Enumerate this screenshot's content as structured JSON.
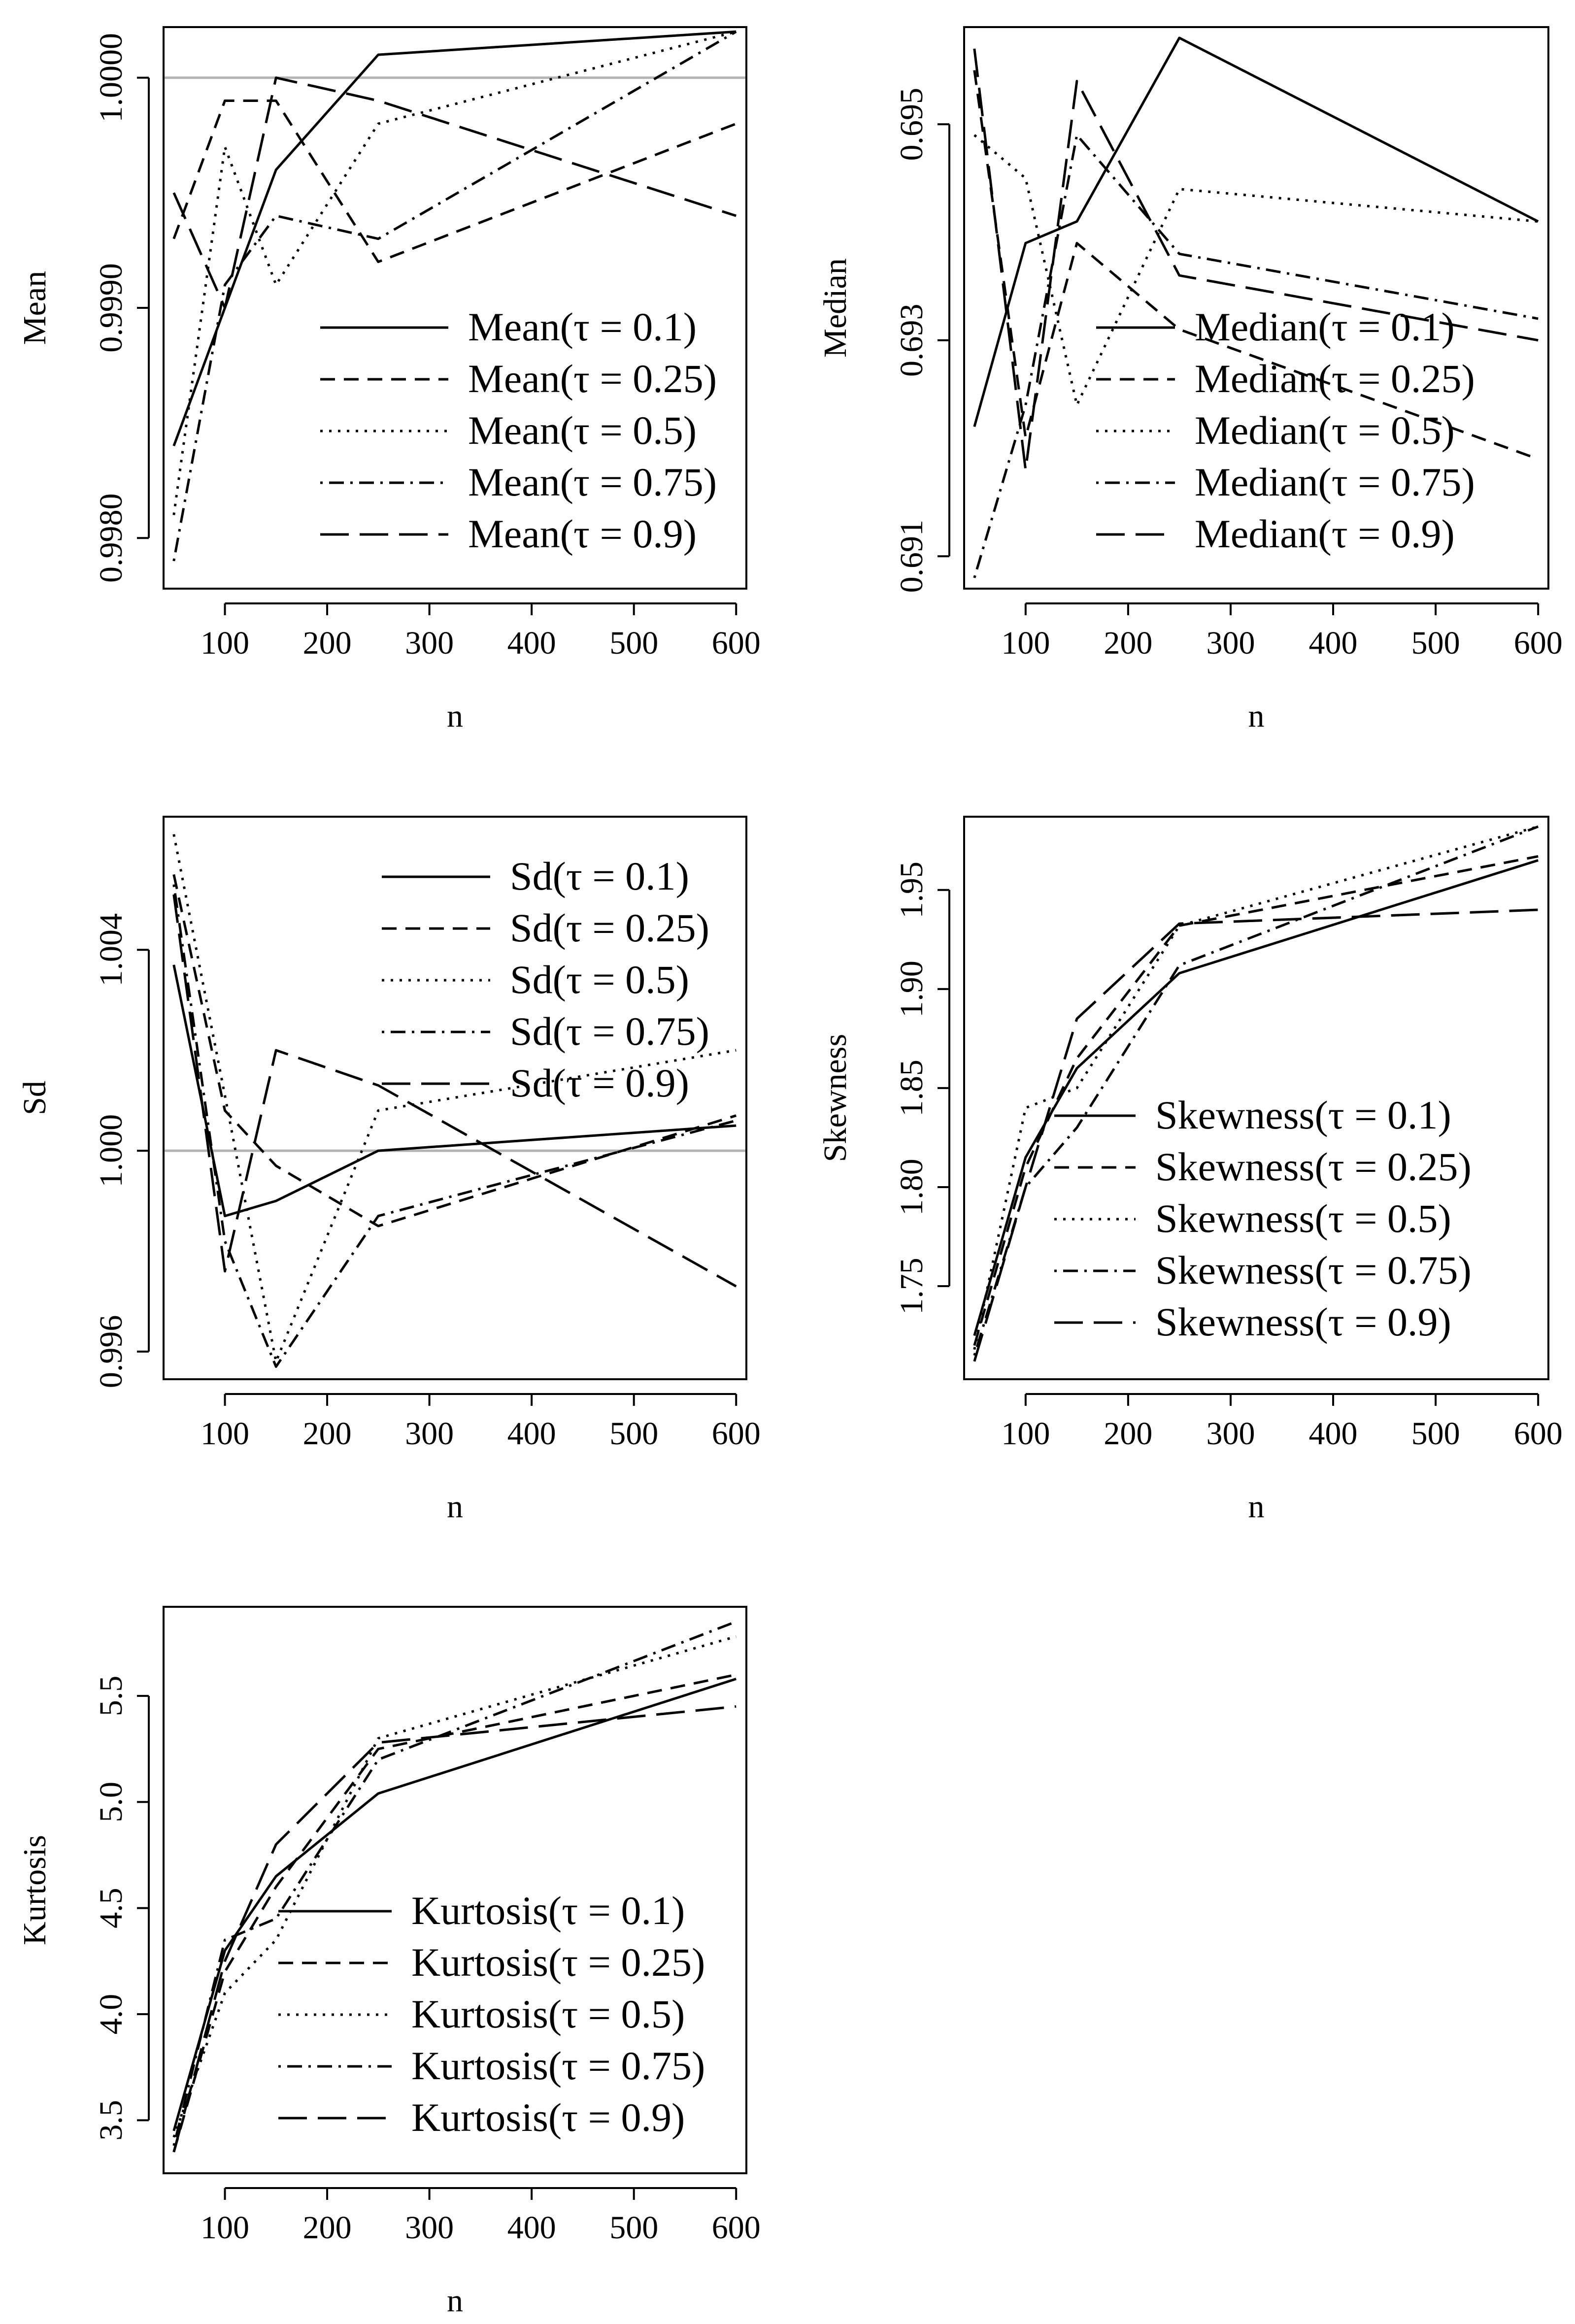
{
  "chart_data": [
    {
      "type": "line",
      "id": "mean",
      "xlabel": "n",
      "ylabel": "Mean",
      "x": [
        50,
        100,
        150,
        250,
        600
      ],
      "xticks": [
        100,
        200,
        300,
        400,
        500,
        600
      ],
      "xlim": [
        40,
        610
      ],
      "yticks": [
        0.998,
        0.999,
        1.0
      ],
      "ytick_labels": [
        "0.9980",
        "0.9990",
        "1.0000"
      ],
      "ylim": [
        0.99778,
        1.00022
      ],
      "reference_line": 1.0,
      "legend_position": "bottom-right",
      "series": [
        {
          "name": "Mean(τ = 0.1)",
          "label_func": "Mean",
          "tau": "0.1",
          "dash": "solid",
          "values": [
            0.9984,
            0.999,
            0.9996,
            1.0001,
            1.0002
          ]
        },
        {
          "name": "Mean(τ = 0.25)",
          "label_func": "Mean",
          "tau": "0.25",
          "dash": "dashed",
          "values": [
            0.9993,
            0.9999,
            0.9999,
            0.9992,
            0.9998
          ]
        },
        {
          "name": "Mean(τ = 0.5)",
          "label_func": "Mean",
          "tau": "0.5",
          "dash": "dotted",
          "values": [
            0.9981,
            0.9997,
            0.9991,
            0.9998,
            1.0002
          ]
        },
        {
          "name": "Mean(τ = 0.75)",
          "label_func": "Mean",
          "tau": "0.75",
          "dash": "dotdash",
          "values": [
            0.9979,
            0.9991,
            0.9994,
            0.9993,
            1.0002
          ]
        },
        {
          "name": "Mean(τ = 0.9)",
          "label_func": "Mean",
          "tau": "0.9",
          "dash": "longdash",
          "values": [
            0.9995,
            0.999,
            1.0,
            0.9999,
            0.9994
          ]
        }
      ]
    },
    {
      "type": "line",
      "id": "median",
      "xlabel": "n",
      "ylabel": "Median",
      "x": [
        50,
        100,
        150,
        250,
        600
      ],
      "xticks": [
        100,
        200,
        300,
        400,
        500,
        600
      ],
      "xlim": [
        40,
        610
      ],
      "yticks": [
        0.691,
        0.693,
        0.695
      ],
      "ytick_labels": [
        "0.691",
        "0.693",
        "0.695"
      ],
      "ylim": [
        0.6907,
        0.6959
      ],
      "legend_position": "bottom-right",
      "series": [
        {
          "name": "Median(τ = 0.1)",
          "label_func": "Median",
          "tau": "0.1",
          "dash": "solid",
          "values": [
            0.6922,
            0.6939,
            0.6941,
            0.6958,
            0.6941
          ]
        },
        {
          "name": "Median(τ = 0.25)",
          "label_func": "Median",
          "tau": "0.25",
          "dash": "dashed",
          "values": [
            0.6955,
            0.6921,
            0.6939,
            0.6931,
            0.6919
          ]
        },
        {
          "name": "Median(τ = 0.5)",
          "label_func": "Median",
          "tau": "0.5",
          "dash": "dotted",
          "values": [
            0.6949,
            0.6945,
            0.6924,
            0.6944,
            0.6941
          ]
        },
        {
          "name": "Median(τ = 0.75)",
          "label_func": "Median",
          "tau": "0.75",
          "dash": "dotdash",
          "values": [
            0.6908,
            0.6924,
            0.6949,
            0.6938,
            0.6932
          ]
        },
        {
          "name": "Median(τ = 0.9)",
          "label_func": "Median",
          "tau": "0.9",
          "dash": "longdash",
          "values": [
            0.6957,
            0.6918,
            0.6954,
            0.6936,
            0.693
          ]
        }
      ]
    },
    {
      "type": "line",
      "id": "sd",
      "xlabel": "n",
      "ylabel": "Sd",
      "x": [
        50,
        100,
        150,
        250,
        600
      ],
      "xticks": [
        100,
        200,
        300,
        400,
        500,
        600
      ],
      "xlim": [
        40,
        610
      ],
      "yticks": [
        0.996,
        1.0,
        1.004
      ],
      "ytick_labels": [
        "0.996",
        "1.000",
        "1.004"
      ],
      "ylim": [
        0.99545,
        1.00665
      ],
      "reference_line": 1.0,
      "legend_position": "top-right",
      "series": [
        {
          "name": "Sd(τ = 0.1)",
          "label_func": "Sd",
          "tau": "0.1",
          "dash": "solid",
          "values": [
            1.0037,
            0.9987,
            0.999,
            1.0,
            1.0005
          ]
        },
        {
          "name": "Sd(τ = 0.25)",
          "label_func": "Sd",
          "tau": "0.25",
          "dash": "dashed",
          "values": [
            1.0055,
            1.0008,
            0.9997,
            0.9985,
            1.0007
          ]
        },
        {
          "name": "Sd(τ = 0.5)",
          "label_func": "Sd",
          "tau": "0.5",
          "dash": "dotted",
          "values": [
            1.0063,
            1.0011,
            0.9958,
            1.0008,
            1.002
          ]
        },
        {
          "name": "Sd(τ = 0.75)",
          "label_func": "Sd",
          "tau": "0.75",
          "dash": "dotdash",
          "values": [
            1.0053,
            0.9982,
            0.9957,
            0.9987,
            1.0006
          ]
        },
        {
          "name": "Sd(τ = 0.9)",
          "label_func": "Sd",
          "tau": "0.9",
          "dash": "longdash",
          "values": [
            1.0051,
            0.9976,
            1.002,
            1.0013,
            0.9973
          ]
        }
      ]
    },
    {
      "type": "line",
      "id": "skewness",
      "xlabel": "n",
      "ylabel": "Skewness",
      "x": [
        50,
        100,
        150,
        250,
        600
      ],
      "xticks": [
        100,
        200,
        300,
        400,
        500,
        600
      ],
      "xlim": [
        40,
        610
      ],
      "yticks": [
        1.75,
        1.8,
        1.85,
        1.9,
        1.95
      ],
      "ytick_labels": [
        "1.75",
        "1.80",
        "1.85",
        "1.90",
        "1.95"
      ],
      "ylim": [
        1.703,
        1.987
      ],
      "legend_position": "bottom-right",
      "series": [
        {
          "name": "Skewness(τ = 0.1)",
          "label_func": "Skewness",
          "tau": "0.1",
          "dash": "solid",
          "values": [
            1.725,
            1.815,
            1.86,
            1.908,
            1.965
          ]
        },
        {
          "name": "Skewness(τ = 0.25)",
          "label_func": "Skewness",
          "tau": "0.25",
          "dash": "dashed",
          "values": [
            1.72,
            1.81,
            1.865,
            1.932,
            1.967
          ]
        },
        {
          "name": "Skewness(τ = 0.5)",
          "label_func": "Skewness",
          "tau": "0.5",
          "dash": "dotted",
          "values": [
            1.718,
            1.84,
            1.85,
            1.932,
            1.982
          ]
        },
        {
          "name": "Skewness(τ = 0.75)",
          "label_func": "Skewness",
          "tau": "0.75",
          "dash": "dotdash",
          "values": [
            1.715,
            1.8,
            1.83,
            1.912,
            1.982
          ]
        },
        {
          "name": "Skewness(τ = 0.9)",
          "label_func": "Skewness",
          "tau": "0.9",
          "dash": "longdash",
          "values": [
            1.712,
            1.8,
            1.885,
            1.933,
            1.94
          ]
        }
      ]
    },
    {
      "type": "line",
      "id": "kurtosis",
      "xlabel": "n",
      "ylabel": "Kurtosis",
      "x": [
        50,
        100,
        150,
        250,
        600
      ],
      "xticks": [
        100,
        200,
        300,
        400,
        500,
        600
      ],
      "xlim": [
        40,
        610
      ],
      "yticks": [
        3.5,
        4.0,
        4.5,
        5.0,
        5.5
      ],
      "ytick_labels": [
        "3.5",
        "4.0",
        "4.5",
        "5.0",
        "5.5"
      ],
      "ylim": [
        3.25,
        5.92
      ],
      "legend_position": "bottom-right",
      "series": [
        {
          "name": "Kurtosis(τ = 0.1)",
          "label_func": "Kurtosis",
          "tau": "0.1",
          "dash": "solid",
          "values": [
            3.45,
            4.3,
            4.65,
            5.04,
            5.58
          ]
        },
        {
          "name": "Kurtosis(τ = 0.25)",
          "label_func": "Kurtosis",
          "tau": "0.25",
          "dash": "dashed",
          "values": [
            3.35,
            4.2,
            4.6,
            5.25,
            5.6
          ]
        },
        {
          "name": "Kurtosis(τ = 0.5)",
          "label_func": "Kurtosis",
          "tau": "0.5",
          "dash": "dotted",
          "values": [
            3.42,
            4.1,
            4.35,
            5.3,
            5.78
          ]
        },
        {
          "name": "Kurtosis(τ = 0.75)",
          "label_func": "Kurtosis",
          "tau": "0.75",
          "dash": "dotdash",
          "values": [
            3.38,
            4.35,
            4.45,
            5.2,
            5.85
          ]
        },
        {
          "name": "Kurtosis(τ = 0.9)",
          "label_func": "Kurtosis",
          "tau": "0.9",
          "dash": "longdash",
          "values": [
            3.35,
            4.25,
            4.8,
            5.28,
            5.45
          ]
        }
      ]
    }
  ]
}
